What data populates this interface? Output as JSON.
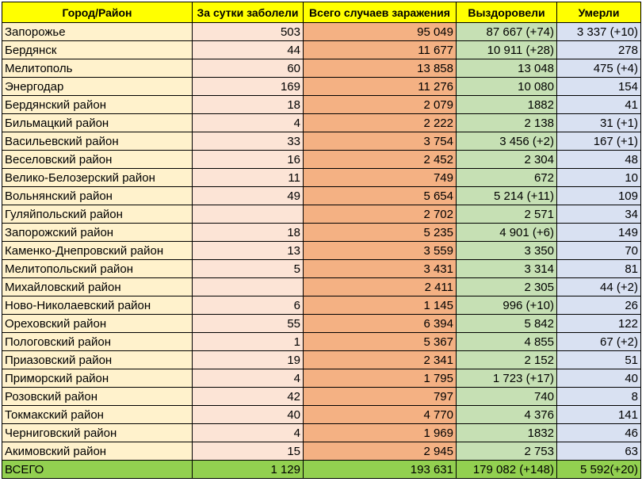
{
  "headers": [
    "Город/Район",
    "За сутки заболели",
    "Всего случаев заражения",
    "Выздоровели",
    "Умерли"
  ],
  "rows": [
    [
      "Запорожье",
      "503",
      "95 049",
      "87 667 (+74)",
      "3 337 (+10)"
    ],
    [
      "Бердянск",
      "44",
      "11 677",
      "10 911 (+28)",
      "278"
    ],
    [
      "Мелитополь",
      "60",
      "13 858",
      "13 048",
      "475 (+4)"
    ],
    [
      "Энергодар",
      "169",
      "11 276",
      "10  080",
      "154"
    ],
    [
      "Бердянский район",
      "18",
      "2 079",
      "1882",
      "41"
    ],
    [
      "Бильмацкий район",
      "4",
      "2 222",
      "2 138",
      "31 (+1)"
    ],
    [
      "Васильевский район",
      "33",
      "3 754",
      "3 456 (+2)",
      "167 (+1)"
    ],
    [
      "Веселовский район",
      "16",
      "2 452",
      "2 304",
      "48"
    ],
    [
      "Велико-Белозерский район",
      "11",
      "749",
      "672",
      "10"
    ],
    [
      "Вольнянский район",
      "49",
      "5 654",
      "5 214 (+11)",
      "109"
    ],
    [
      "Гуляйпольский район",
      "",
      "2 702",
      "2 571",
      "34"
    ],
    [
      "Запорожский район",
      "18",
      "5 235",
      "4 901 (+6)",
      "149"
    ],
    [
      "Каменко-Днепровский район",
      "13",
      "3 559",
      "3 350",
      "70"
    ],
    [
      "Мелитопольский район",
      "5",
      "3 431",
      "3 314",
      "81"
    ],
    [
      "Михайловский район",
      "",
      "2 411",
      "2 305",
      "44 (+2)"
    ],
    [
      "Ново-Николаевский район",
      "6",
      "1 145",
      "996 (+10)",
      "26"
    ],
    [
      "Ореховский район",
      "55",
      "6 394",
      "5 842",
      "122"
    ],
    [
      "Пологовский район",
      "1",
      "5 367",
      "4 855",
      "67 (+2)"
    ],
    [
      "Приазовский район",
      "19",
      "2 341",
      "2 152",
      "51"
    ],
    [
      "Приморский район",
      "4",
      "1 795",
      "1 723 (+17)",
      "40"
    ],
    [
      "Розовский район",
      "42",
      "797",
      "740",
      "8"
    ],
    [
      "Токмакский район",
      "40",
      "4 770",
      "4 376",
      "141"
    ],
    [
      "Черниговский район",
      "4",
      "1 969",
      "1832",
      "46"
    ],
    [
      "Акимовский район",
      "15",
      "2 945",
      "2 753",
      "63"
    ]
  ],
  "total": [
    "ВСЕГО",
    "1 129",
    "193 631",
    "179 082 (+148)",
    "5 592(+20)"
  ]
}
